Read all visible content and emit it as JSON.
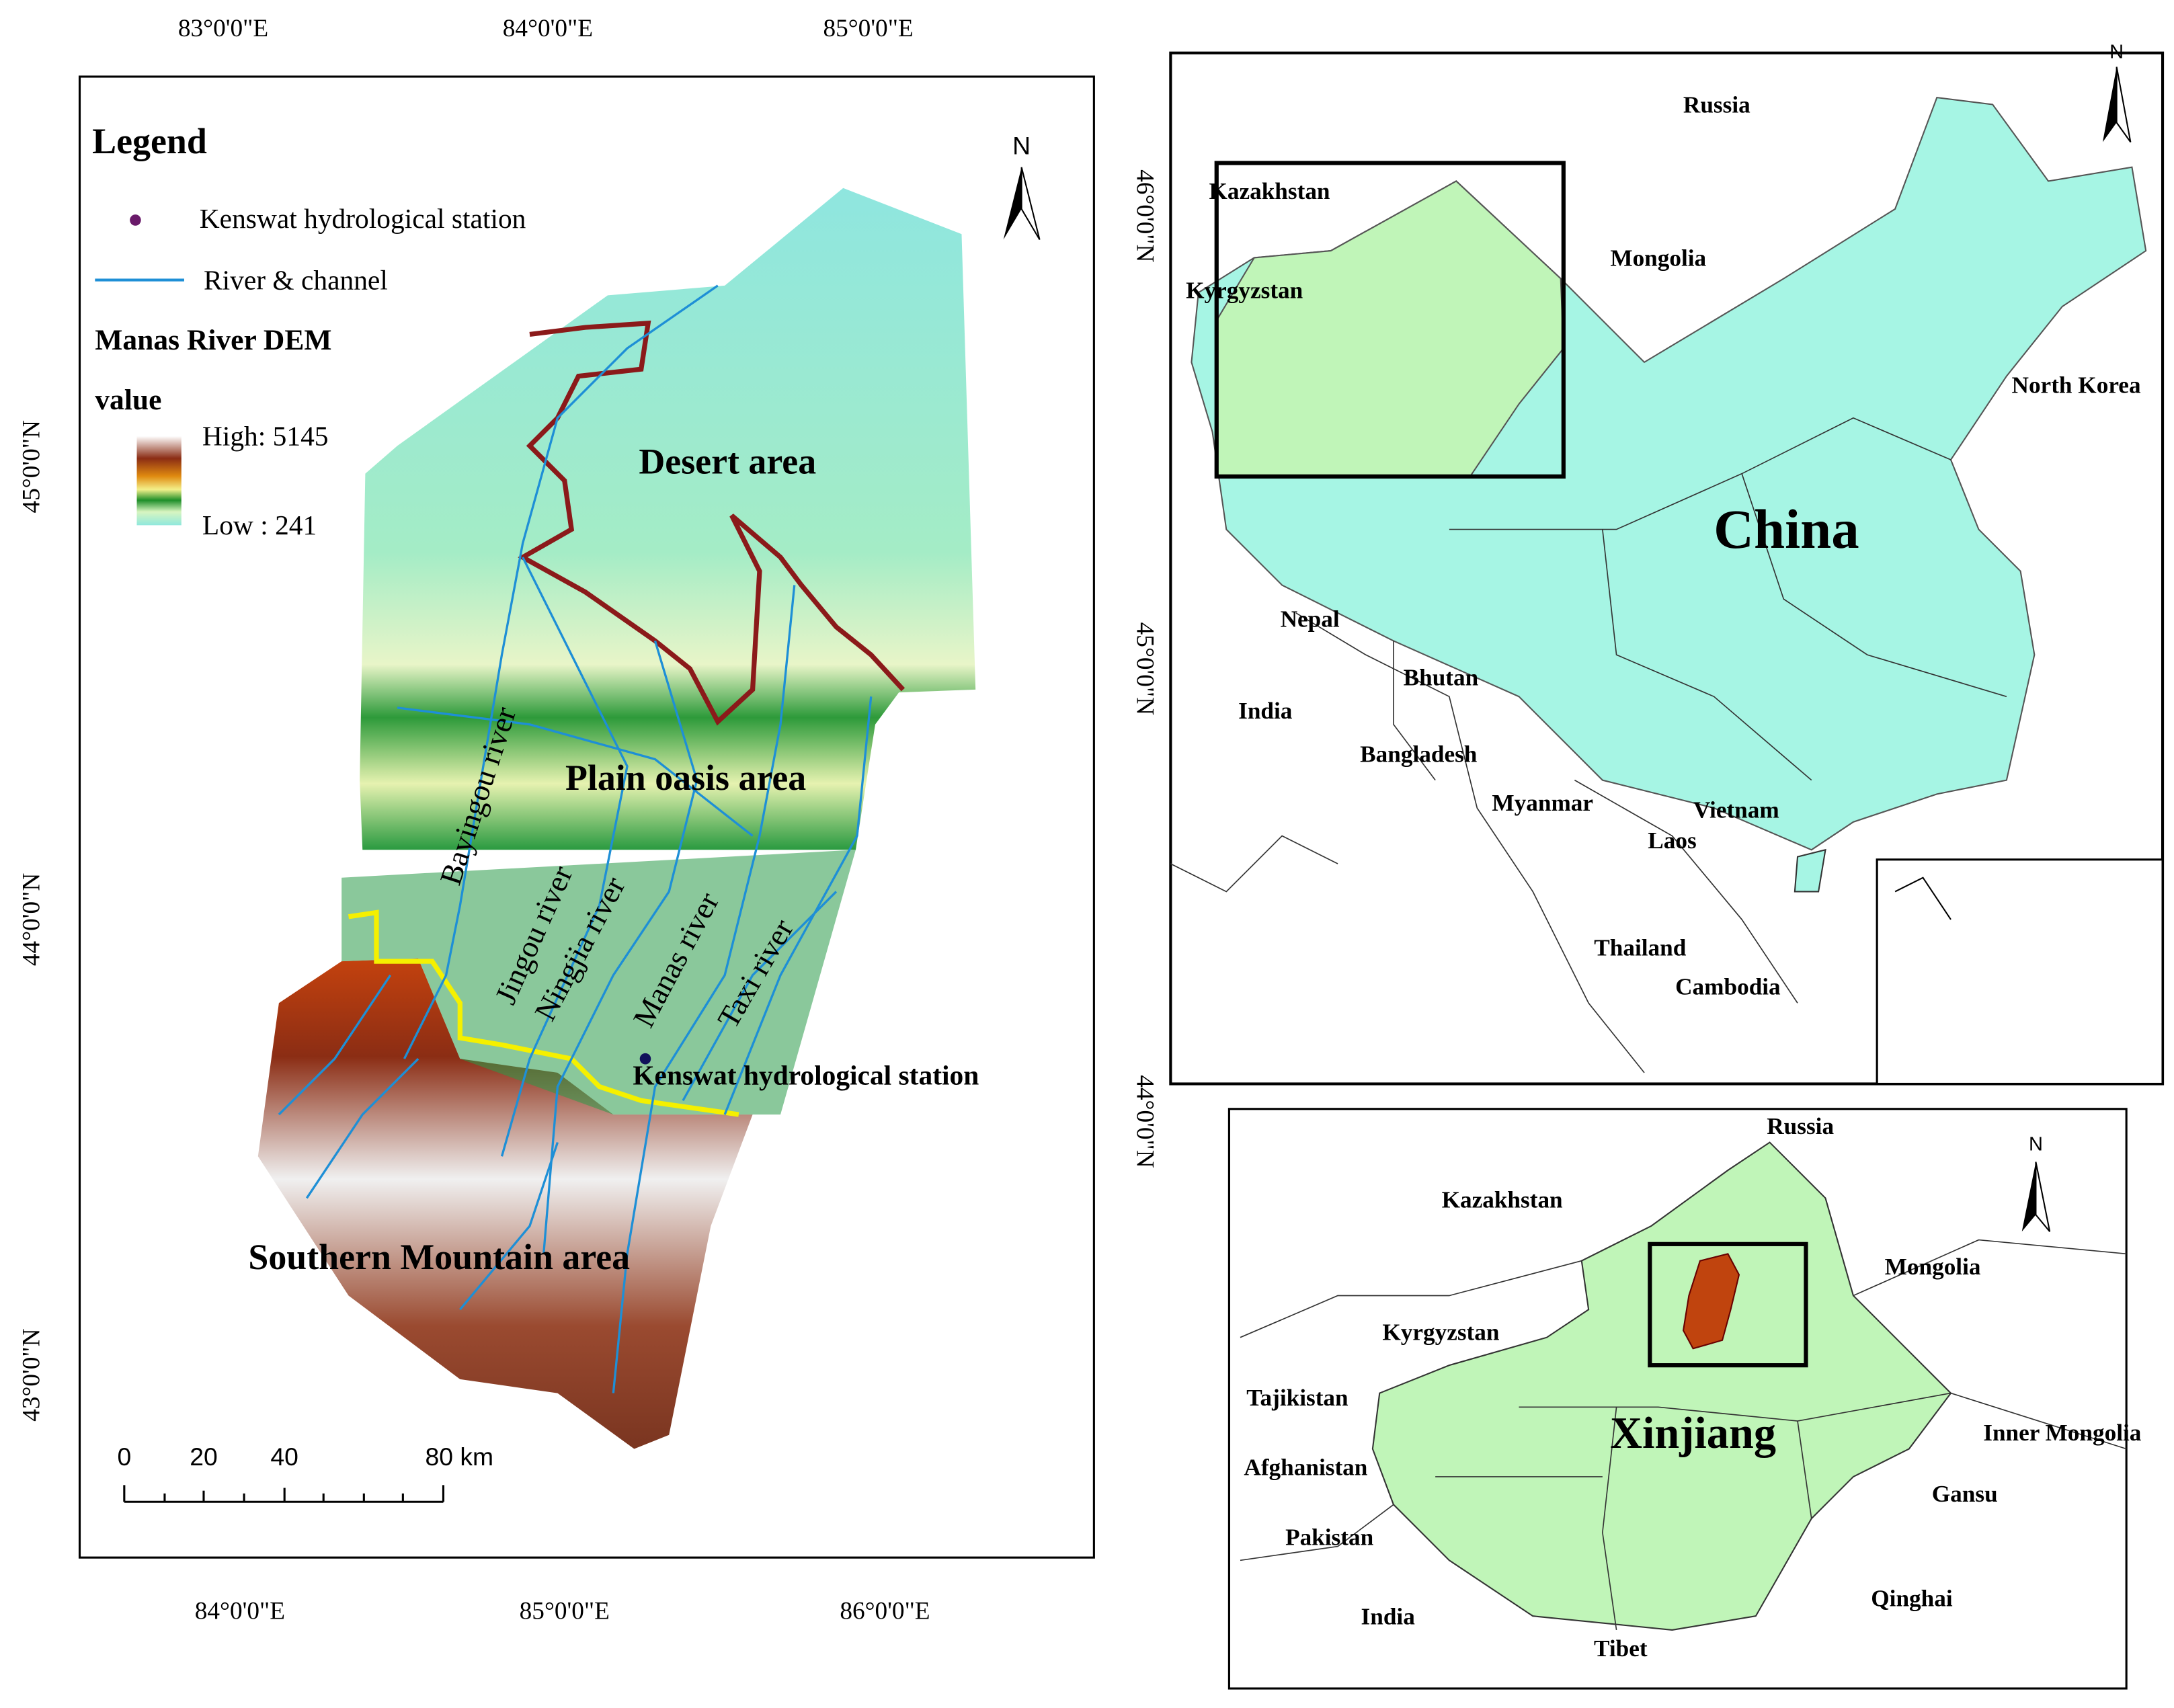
{
  "main_map": {
    "lon_top": [
      "83°0'0\"E",
      "84°0'0\"E",
      "85°0'0\"E"
    ],
    "lon_bottom": [
      "84°0'0\"E",
      "85°0'0\"E",
      "86°0'0\"E"
    ],
    "lat": [
      "45°0'0\"N",
      "44°0'0\"N",
      "43°0'0\"N"
    ],
    "legend": {
      "title": "Legend",
      "station": "Kenswat hydrological station",
      "river": "River & channel",
      "dem_title": "Manas River DEM",
      "dem_subtitle": "value",
      "high": "High: 5145",
      "low": "Low : 241"
    },
    "north": "N",
    "areas": [
      "Desert area",
      "Plain oasis area",
      "Southern Mountain area"
    ],
    "rivers": [
      "Bayingou river",
      "Jingou river",
      "Ningjia river",
      "Manas river",
      "Taxi river"
    ],
    "station_label": "Kenswat hydrological station",
    "scale": [
      "0",
      "20",
      "40",
      "80 km"
    ]
  },
  "china_map": {
    "lat": [
      "46°0'0\"N",
      "45°0'0\"N",
      "44°0'0\"N"
    ],
    "north": "N",
    "title": "China",
    "countries": [
      "Russia",
      "Kazakhstan",
      "Mongolia",
      "Kyrgyzstan",
      "North Korea",
      "Nepal",
      "India",
      "Bhutan",
      "Bangladesh",
      "Myanmar",
      "Vietnam",
      "Laos",
      "Thailand",
      "Cambodia"
    ]
  },
  "xinjiang_map": {
    "north": "N",
    "title": "Xinjiang",
    "labels": [
      "Russia",
      "Kazakhstan",
      "Mongolia",
      "Kyrgyzstan",
      "Tajikistan",
      "Inner Mongolia",
      "Afghanistan",
      "Gansu",
      "Pakistan",
      "Qinghai",
      "India",
      "Tibet"
    ]
  }
}
